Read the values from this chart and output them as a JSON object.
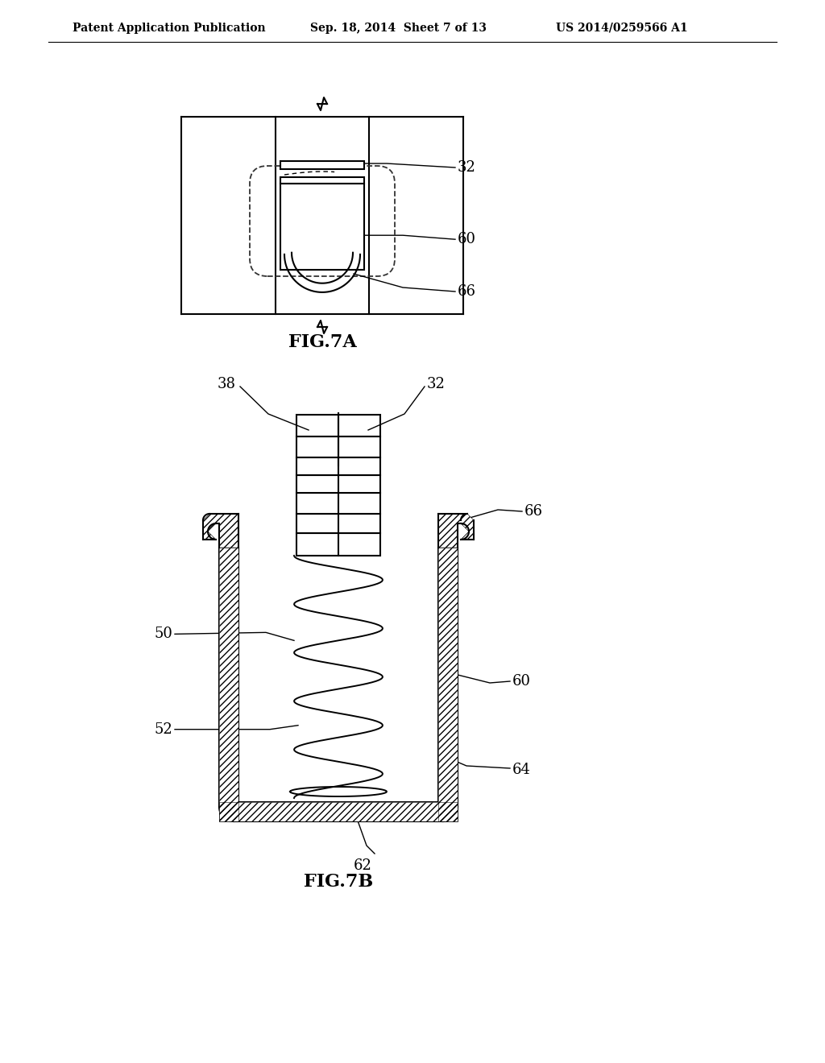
{
  "background_color": "#ffffff",
  "header_left": "Patent Application Publication",
  "header_center": "Sep. 18, 2014  Sheet 7 of 13",
  "header_right": "US 2014/0259566 A1",
  "fig7a_label": "FIG.7A",
  "fig7b_label": "FIG.7B",
  "line_color": "#000000"
}
